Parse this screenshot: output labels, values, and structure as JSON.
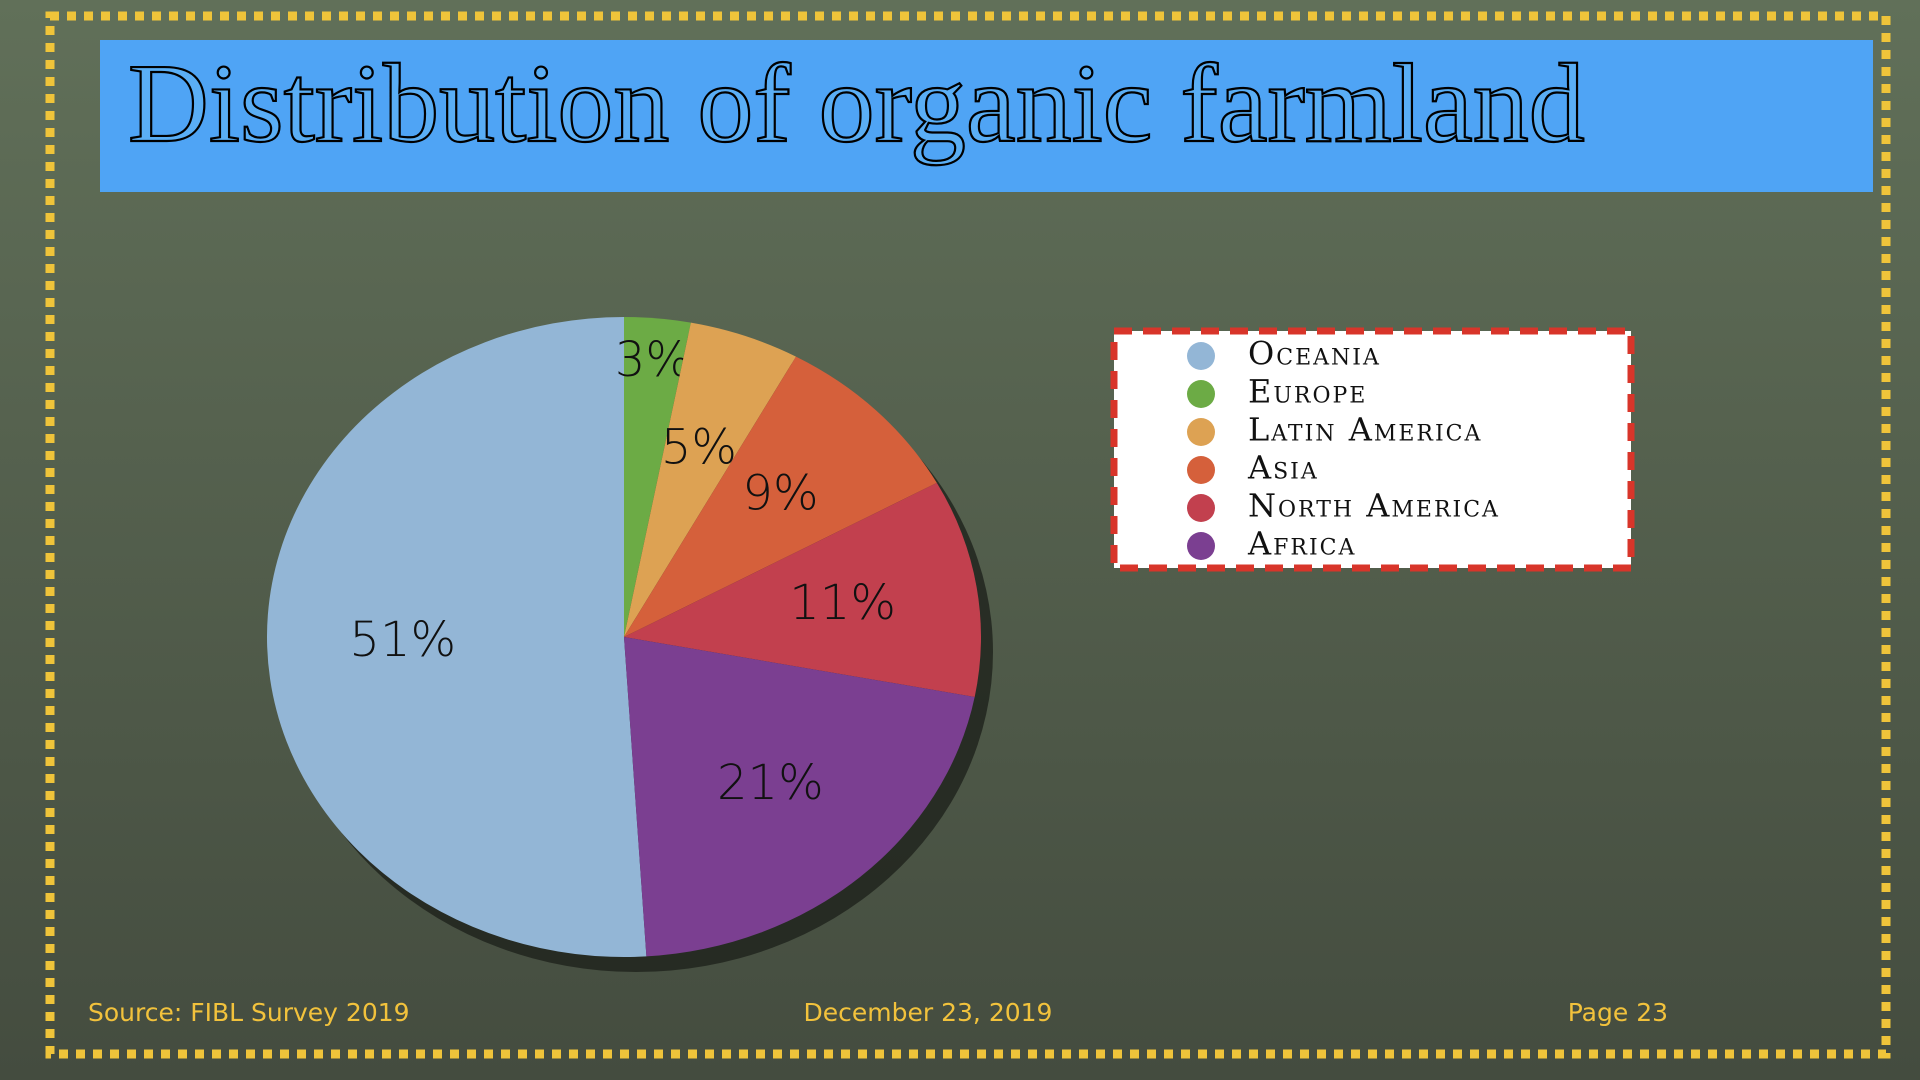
{
  "chart_data": {
    "type": "pie",
    "title": "Distribution of organic farmland",
    "categories": [
      "Oceania",
      "Europe",
      "Latin America",
      "Asia",
      "North America",
      "Africa"
    ],
    "values": [
      51,
      3,
      5,
      9,
      11,
      21
    ],
    "value_labels": [
      "51%",
      "3%",
      "5%",
      "9%",
      "11%",
      "21%"
    ],
    "colors": [
      "#93b6d6",
      "#6cab45",
      "#dda253",
      "#d5603b",
      "#c2404e",
      "#7b3f91"
    ]
  },
  "footer": {
    "source": "Source: FIBL Survey 2019",
    "date": "December 23, 2019",
    "page": "Page 23"
  }
}
